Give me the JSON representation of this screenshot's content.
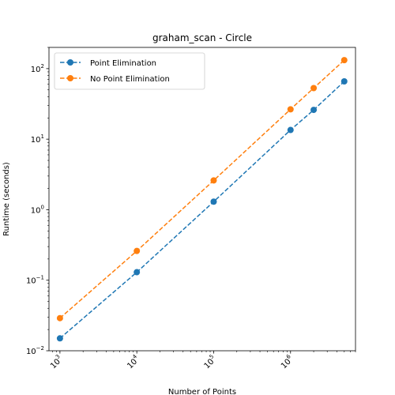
{
  "chart_data": {
    "type": "line",
    "title": "graham_scan - Circle",
    "xlabel": "Number of Points",
    "ylabel": "Runtime (seconds)",
    "xscale": "log",
    "yscale": "log",
    "xlim": [
      720,
      7000000
    ],
    "ylim": [
      0.01,
      200
    ],
    "x_ticks": [
      {
        "value": 1000,
        "base": "10",
        "exp": "3"
      },
      {
        "value": 10000,
        "base": "10",
        "exp": "4"
      },
      {
        "value": 100000,
        "base": "10",
        "exp": "5"
      },
      {
        "value": 1000000,
        "base": "10",
        "exp": "6"
      }
    ],
    "y_ticks": [
      {
        "value": 0.01,
        "base": "10",
        "exp": "−2"
      },
      {
        "value": 0.1,
        "base": "10",
        "exp": "−1"
      },
      {
        "value": 1,
        "base": "10",
        "exp": "0"
      },
      {
        "value": 10,
        "base": "10",
        "exp": "1"
      },
      {
        "value": 100,
        "base": "10",
        "exp": "2"
      }
    ],
    "grid": false,
    "legend_position": "top-left",
    "x": [
      1000,
      10000,
      100000,
      1000000,
      2000000,
      5000000
    ],
    "series": [
      {
        "name": "Point Elimination",
        "color": "#1f77b4",
        "style": "dashed",
        "marker": "circle",
        "values": [
          0.015,
          0.13,
          1.3,
          13.5,
          26,
          66
        ]
      },
      {
        "name": "No Point Elimination",
        "color": "#ff7f0e",
        "style": "dashed",
        "marker": "circle",
        "values": [
          0.029,
          0.26,
          2.6,
          26.5,
          53,
          132
        ]
      }
    ]
  }
}
